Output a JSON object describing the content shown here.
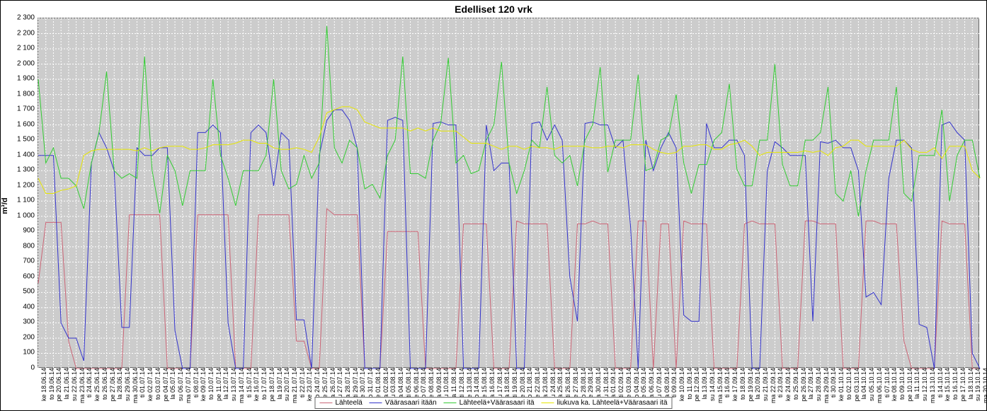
{
  "chart": {
    "type": "line",
    "title": "Edelliset 120 vrk",
    "title_fontsize": 14,
    "ylabel": "m³/d",
    "label_fontsize": 11,
    "background_color": "#cccccc",
    "grid_color": "#ffffff",
    "grid_dash": "2 2",
    "border_color": "#666666",
    "ylim": [
      0,
      2300
    ],
    "ytick_step": 100,
    "line_width": 1,
    "x_labels": [
      "ke 18.06.14",
      "to 19.06.14",
      "pe 20.06.14",
      "la 21.06.14",
      "su 22.06.14",
      "ma 23.06.14",
      "ti 24.06.14",
      "ke 25.06.14",
      "to 26.06.14",
      "pe 27.06.14",
      "la 28.06.14",
      "su 29.06.14",
      "ma 30.06.14",
      "ti 01.07.14",
      "ke 02.07.14",
      "to 03.07.14",
      "pe 04.07.14",
      "la 05.07.14",
      "su 06.07.14",
      "ma 07.07.14",
      "ti 08.07.14",
      "ke 09.07.14",
      "to 10.07.14",
      "pe 11.07.14",
      "la 12.07.14",
      "su 13.07.14",
      "ma 14.07.14",
      "ti 15.07.14",
      "ke 16.07.14",
      "to 17.07.14",
      "pe 18.07.14",
      "la 19.07.14",
      "su 20.07.14",
      "ma 21.07.14",
      "ti 22.07.14",
      "ke 23.07.14",
      "to 24.07.14",
      "pe 25.07.14",
      "la 26.07.14",
      "su 27.07.14",
      "ma 28.07.14",
      "ti 29.07.14",
      "ke 30.07.14",
      "to 31.07.14",
      "pe 01.08.14",
      "la 02.08.14",
      "su 03.08.14",
      "ma 04.08.14",
      "ti 05.08.14",
      "ke 06.08.14",
      "to 07.08.14",
      "pe 08.08.14",
      "la 09.08.14",
      "su 10.08.14",
      "ma 11.08.14",
      "ti 12.08.14",
      "ke 13.08.14",
      "to 14.08.14",
      "pe 15.08.14",
      "la 16.08.14",
      "su 17.08.14",
      "ma 18.08.14",
      "ti 19.08.14",
      "ke 20.08.14",
      "to 21.08.14",
      "pe 22.08.14",
      "la 23.08.14",
      "su 24.08.14",
      "ma 25.08.14",
      "ti 26.08.14",
      "ke 27.08.14",
      "to 28.08.14",
      "pe 29.08.14",
      "la 30.08.14",
      "su 31.08.14",
      "ma 01.09.14",
      "ti 02.09.14",
      "ke 03.09.14",
      "to 04.09.14",
      "pe 05.09.14",
      "la 06.09.14",
      "su 07.09.14",
      "ma 08.09.14",
      "ti 09.09.14",
      "ke 10.09.14",
      "to 11.09.14",
      "pe 12.09.14",
      "la 13.09.14",
      "su 14.09.14",
      "ma 15.09.14",
      "ti 16.09.14",
      "ke 17.09.14",
      "to 18.09.14",
      "pe 19.09.14",
      "la 20.09.14",
      "su 21.09.14",
      "ma 22.09.14",
      "ti 23.09.14",
      "ke 24.09.14",
      "to 25.09.14",
      "pe 26.09.14",
      "la 27.09.14",
      "su 28.09.14",
      "ma 29.09.14",
      "ti 30.09.14",
      "ke 01.10.14",
      "to 02.10.14",
      "pe 03.10.14",
      "la 04.10.14",
      "su 05.10.14",
      "ma 06.10.14",
      "ti 07.10.14",
      "ke 08.10.14",
      "to 09.10.14",
      "pe 10.10.14",
      "la 11.10.14",
      "su 12.10.14",
      "ma 13.10.14",
      "ti 14.10.14",
      "ke 15.10.14",
      "to 16.10.14",
      "pe 17.10.14",
      "la 18.10.14",
      "su 19.10.14",
      "ma 20.10.14"
    ],
    "series": [
      {
        "name": "Lähteelä",
        "color": "#cc6677",
        "data": [
          560,
          960,
          960,
          960,
          180,
          0,
          0,
          0,
          0,
          0,
          0,
          0,
          1010,
          1010,
          1010,
          1010,
          1010,
          0,
          0,
          0,
          0,
          1010,
          1010,
          1010,
          1010,
          1010,
          0,
          0,
          0,
          1010,
          1010,
          1010,
          1010,
          1010,
          180,
          180,
          0,
          0,
          1050,
          1010,
          1010,
          1010,
          1010,
          0,
          0,
          0,
          900,
          900,
          900,
          900,
          900,
          0,
          0,
          0,
          0,
          0,
          950,
          950,
          950,
          950,
          0,
          0,
          0,
          970,
          950,
          950,
          950,
          950,
          0,
          0,
          0,
          950,
          950,
          970,
          950,
          950,
          0,
          0,
          0,
          970,
          970,
          0,
          950,
          950,
          0,
          970,
          950,
          950,
          950,
          0,
          0,
          0,
          0,
          950,
          970,
          950,
          950,
          950,
          0,
          0,
          0,
          970,
          970,
          950,
          950,
          950,
          0,
          0,
          0,
          970,
          970,
          950,
          950,
          950,
          180,
          0,
          0,
          0,
          0,
          970,
          950,
          950,
          950,
          0,
          0
        ]
      },
      {
        "name": "Väärasaari itään",
        "color": "#3333cc",
        "data": [
          1400,
          1400,
          1400,
          300,
          200,
          200,
          50,
          1350,
          1550,
          1450,
          1300,
          270,
          270,
          1450,
          1400,
          1400,
          1450,
          1450,
          250,
          0,
          0,
          1550,
          1550,
          1600,
          1550,
          300,
          0,
          0,
          1550,
          1600,
          1550,
          1200,
          1550,
          1500,
          320,
          320,
          0,
          1400,
          1630,
          1700,
          1700,
          1630,
          1450,
          0,
          0,
          0,
          1630,
          1650,
          1630,
          0,
          0,
          0,
          1610,
          1620,
          1600,
          1600,
          0,
          0,
          0,
          1600,
          1300,
          1350,
          1350,
          0,
          0,
          1610,
          1620,
          1500,
          1600,
          1500,
          600,
          310,
          1610,
          1620,
          1600,
          1600,
          1450,
          1500,
          930,
          0,
          1500,
          1300,
          1450,
          1550,
          1450,
          350,
          310,
          310,
          1610,
          1450,
          1450,
          1500,
          1500,
          1400,
          0,
          0,
          1300,
          1490,
          1450,
          1400,
          1400,
          1400,
          310,
          1490,
          1480,
          1500,
          1450,
          1450,
          1300,
          470,
          500,
          420,
          1250,
          1500,
          1500,
          1450,
          290,
          270,
          0,
          1600,
          1620,
          1550,
          1500,
          100,
          0
        ]
      },
      {
        "name": "Lähteelä+Väärasaari itä",
        "color": "#33cc33",
        "data": [
          1900,
          1350,
          1450,
          1250,
          1250,
          1200,
          1050,
          1350,
          1550,
          1950,
          1300,
          1250,
          1280,
          1250,
          2050,
          1300,
          1020,
          1400,
          1300,
          1070,
          1300,
          1300,
          1300,
          1900,
          1400,
          1250,
          1070,
          1300,
          1300,
          1300,
          1400,
          1900,
          1300,
          1180,
          1210,
          1400,
          1250,
          1350,
          2250,
          1450,
          1350,
          1500,
          1450,
          1180,
          1210,
          1120,
          1400,
          1500,
          2050,
          1280,
          1280,
          1250,
          1500,
          1610,
          2040,
          1350,
          1400,
          1280,
          1300,
          1500,
          1600,
          2015,
          1350,
          1150,
          1300,
          1500,
          1450,
          1850,
          1400,
          1350,
          1400,
          1200,
          1500,
          1600,
          1980,
          1290,
          1500,
          1500,
          1500,
          1930,
          1300,
          1320,
          1500,
          1530,
          1800,
          1350,
          1150,
          1340,
          1340,
          1500,
          1550,
          1870,
          1310,
          1200,
          1200,
          1500,
          1500,
          2000,
          1340,
          1200,
          1200,
          1500,
          1500,
          1550,
          1850,
          1150,
          1100,
          1300,
          1000,
          1300,
          1500,
          1500,
          1500,
          1850,
          1150,
          1100,
          1400,
          1400,
          1400,
          1700,
          1100,
          1400,
          1500,
          1500,
          1250
        ]
      },
      {
        "name": "liukuva ka. Lähteelä+Väärasaari itä",
        "color": "#e6e600",
        "data": [
          1250,
          1150,
          1150,
          1170,
          1180,
          1200,
          1400,
          1430,
          1440,
          1440,
          1440,
          1440,
          1440,
          1430,
          1450,
          1430,
          1450,
          1460,
          1460,
          1460,
          1440,
          1440,
          1450,
          1470,
          1470,
          1470,
          1480,
          1500,
          1500,
          1480,
          1480,
          1450,
          1440,
          1440,
          1450,
          1440,
          1420,
          1520,
          1680,
          1700,
          1720,
          1720,
          1700,
          1620,
          1600,
          1580,
          1580,
          1580,
          1580,
          1560,
          1580,
          1560,
          1580,
          1560,
          1560,
          1560,
          1520,
          1480,
          1480,
          1480,
          1460,
          1440,
          1460,
          1460,
          1440,
          1460,
          1450,
          1450,
          1440,
          1460,
          1460,
          1460,
          1460,
          1450,
          1450,
          1460,
          1460,
          1450,
          1470,
          1470,
          1470,
          1440,
          1420,
          1410,
          1420,
          1460,
          1460,
          1470,
          1470,
          1440,
          1440,
          1470,
          1480,
          1500,
          1460,
          1400,
          1420,
          1420,
          1420,
          1420,
          1420,
          1430,
          1420,
          1430,
          1400,
          1450,
          1460,
          1500,
          1500,
          1460,
          1460,
          1460,
          1460,
          1460,
          1500,
          1440,
          1420,
          1420,
          1450,
          1380,
          1460,
          1460,
          1460,
          1300,
          1250
        ]
      }
    ],
    "legend": {
      "position": "bottom-center",
      "items": [
        {
          "label": "Lähteelä",
          "color": "#cc6677"
        },
        {
          "label": "Väärasaari itään",
          "color": "#3333cc"
        },
        {
          "label": "Lähteelä+Väärasaari itä",
          "color": "#33cc33"
        },
        {
          "label": "liukuva ka. Lähteelä+Väärasaari itä",
          "color": "#e6e600"
        }
      ]
    }
  }
}
